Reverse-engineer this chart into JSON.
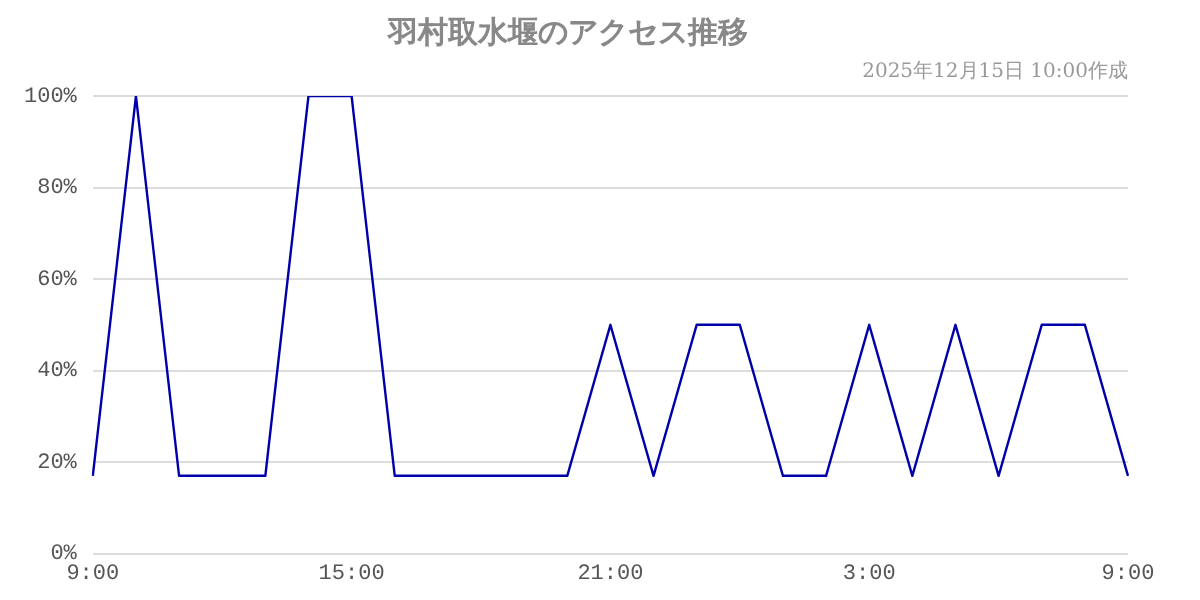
{
  "chart_data": {
    "type": "line",
    "title": "羽村取水堰のアクセス推移",
    "subtitle": "2025年12月15日 10:00作成",
    "categories": [
      "9:00",
      null,
      null,
      null,
      null,
      null,
      "15:00",
      null,
      null,
      null,
      null,
      null,
      "21:00",
      null,
      null,
      null,
      null,
      null,
      "3:00",
      null,
      null,
      null,
      null,
      null,
      "9:00"
    ],
    "series": [
      {
        "color": "#0000aa",
        "values": [
          17,
          100,
          17,
          17,
          17,
          100,
          100,
          17,
          17,
          17,
          17,
          17,
          50,
          17,
          50,
          50,
          17,
          17,
          50,
          17,
          50,
          17,
          50,
          50,
          17
        ]
      }
    ],
    "ylim": [
      0,
      100
    ],
    "yticks": [
      {
        "value": 0,
        "label": "0%"
      },
      {
        "value": 20,
        "label": "20%"
      },
      {
        "value": 40,
        "label": "40%"
      },
      {
        "value": 60,
        "label": "60%"
      },
      {
        "value": 80,
        "label": "80%"
      },
      {
        "value": 100,
        "label": "100%"
      }
    ],
    "grid": "y",
    "legend": false,
    "marker": "none",
    "line_style": "solid"
  }
}
